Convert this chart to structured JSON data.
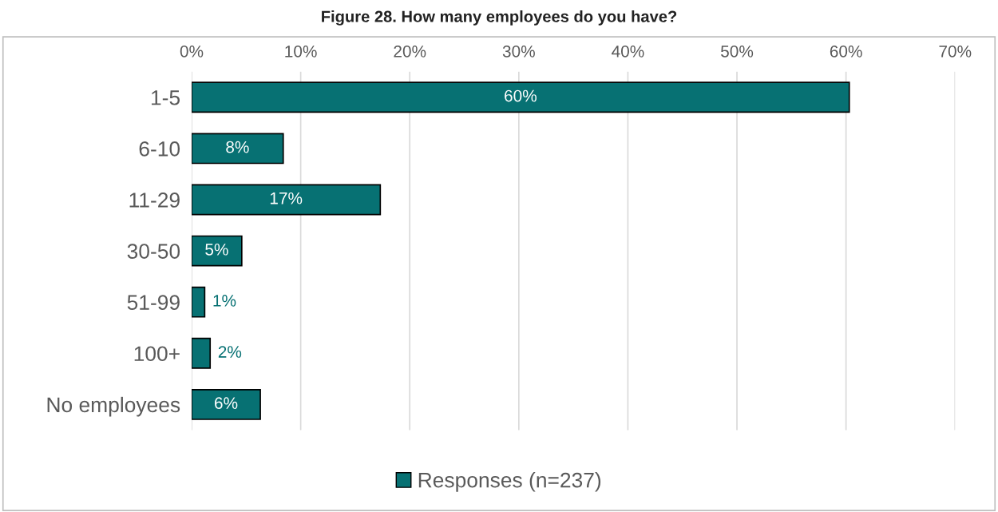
{
  "chart_data": {
    "type": "bar",
    "orientation": "horizontal",
    "title": "Figure 28. How many employees do you have?",
    "categories": [
      "1-5",
      "6-10",
      "11-29",
      "30-50",
      "51-99",
      "100+",
      "No employees"
    ],
    "series": [
      {
        "name": "Responses (n=237)",
        "color": "#077173",
        "values": [
          60.3,
          8.4,
          17.3,
          4.6,
          1.2,
          1.7,
          6.3
        ],
        "value_labels": [
          "60%",
          "8%",
          "17%",
          "5%",
          "1%",
          "2%",
          "6%"
        ]
      }
    ],
    "xlim": [
      0,
      70
    ],
    "xticks": [
      {
        "value": 0,
        "label": "0%"
      },
      {
        "value": 10,
        "label": "10%"
      },
      {
        "value": 20,
        "label": "20%"
      },
      {
        "value": 30,
        "label": "30%"
      },
      {
        "value": 40,
        "label": "40%"
      },
      {
        "value": 50,
        "label": "50%"
      },
      {
        "value": 60,
        "label": "60%"
      },
      {
        "value": 70,
        "label": "70%"
      }
    ],
    "grid": "x",
    "legend": "bottom"
  }
}
